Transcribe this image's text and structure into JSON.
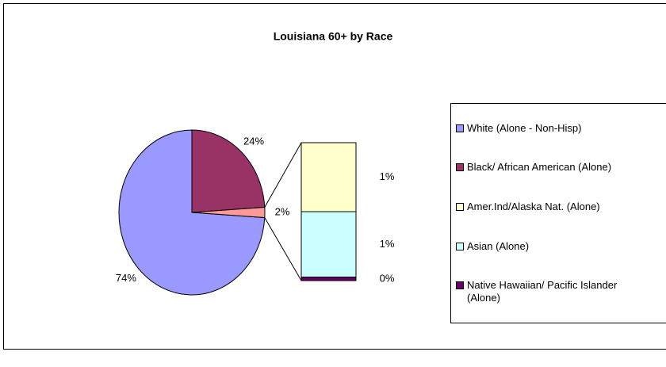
{
  "chart_data": {
    "type": "pie-of-bar",
    "title": "Louisiana 60+ by Race",
    "pie": {
      "categories": [
        "White (Alone - Non-Hisp)",
        "Black/ African American (Alone)",
        null
      ],
      "values": [
        74,
        24,
        2
      ],
      "value_labels": [
        "74%",
        "24%",
        "2%"
      ],
      "colors": [
        "#9999ff",
        "#993366",
        "#ff9999"
      ]
    },
    "bar": {
      "categories": [
        "Amer.Ind/Alaska Nat. (Alone)",
        "Asian (Alone)",
        "Native Hawaiian/ Pacific Islander (Alone)"
      ],
      "values": [
        1.0,
        0.95,
        0.05
      ],
      "value_labels": [
        "1%",
        "1%",
        "0%"
      ],
      "colors": [
        "#ffffcc",
        "#ccffff",
        "#660066"
      ]
    }
  }
}
